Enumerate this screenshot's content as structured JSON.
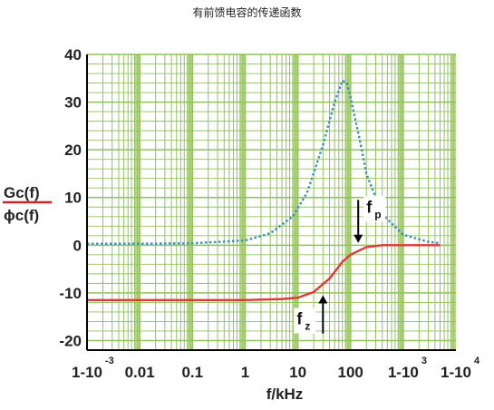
{
  "title": "有前馈电容的传递函数",
  "chart_data": {
    "type": "line",
    "xscale": "log",
    "xlabel": "f/kHz",
    "ylabel_top": "Gc(f)",
    "ylabel_bottom": "ϕc(f)",
    "xlim": [
      0.001,
      10000
    ],
    "ylim": [
      -22,
      40
    ],
    "xticks": [
      {
        "value": 0.001,
        "base": "1-10",
        "sup": "-3"
      },
      {
        "value": 0.01,
        "base": "0.01",
        "sup": ""
      },
      {
        "value": 0.1,
        "base": "0.1",
        "sup": ""
      },
      {
        "value": 1,
        "base": "1",
        "sup": ""
      },
      {
        "value": 10,
        "base": "10",
        "sup": ""
      },
      {
        "value": 100,
        "base": "100",
        "sup": ""
      },
      {
        "value": 1000,
        "base": "1-10",
        "sup": "3"
      },
      {
        "value": 10000,
        "base": "1-10",
        "sup": "4"
      }
    ],
    "yticks": [
      40,
      30,
      20,
      10,
      0,
      -10,
      -20
    ],
    "grid": true,
    "series": [
      {
        "color": "#3a8fc0",
        "style": "dotted",
        "x": [
          0.001,
          0.01,
          0.1,
          1,
          3,
          8,
          15,
          30,
          50,
          70,
          85,
          100,
          150,
          200,
          400,
          1000,
          3000,
          5000
        ],
        "y": [
          0.3,
          0.3,
          0.4,
          1.0,
          2.5,
          6,
          11,
          21,
          30,
          34.5,
          34,
          31,
          22,
          15,
          6.5,
          2.2,
          0.7,
          0.4
        ]
      },
      {
        "color": "#e03838",
        "style": "solid",
        "x": [
          0.001,
          0.1,
          1,
          5,
          10,
          20,
          40,
          70,
          100,
          200,
          400,
          1000,
          3000,
          5000
        ],
        "y": [
          -11.5,
          -11.5,
          -11.5,
          -11.3,
          -11,
          -9.8,
          -7,
          -3.5,
          -2,
          -0.4,
          0,
          0,
          0,
          0
        ]
      }
    ],
    "annotations": [
      {
        "name": "fp",
        "base": "f",
        "sub": "p",
        "x": 140,
        "y_arrow_from": 9.5,
        "y_arrow_to": 0.5
      },
      {
        "name": "fz",
        "base": "f",
        "sub": "z",
        "x": 30,
        "y_arrow_from": -18.5,
        "y_arrow_to": -10.5
      }
    ],
    "colors": {
      "background": "#ffffff",
      "grid_line": "#8fc35a",
      "band": "#b2d47e",
      "axis": "#000000",
      "label_underline": "#c8282c"
    }
  }
}
